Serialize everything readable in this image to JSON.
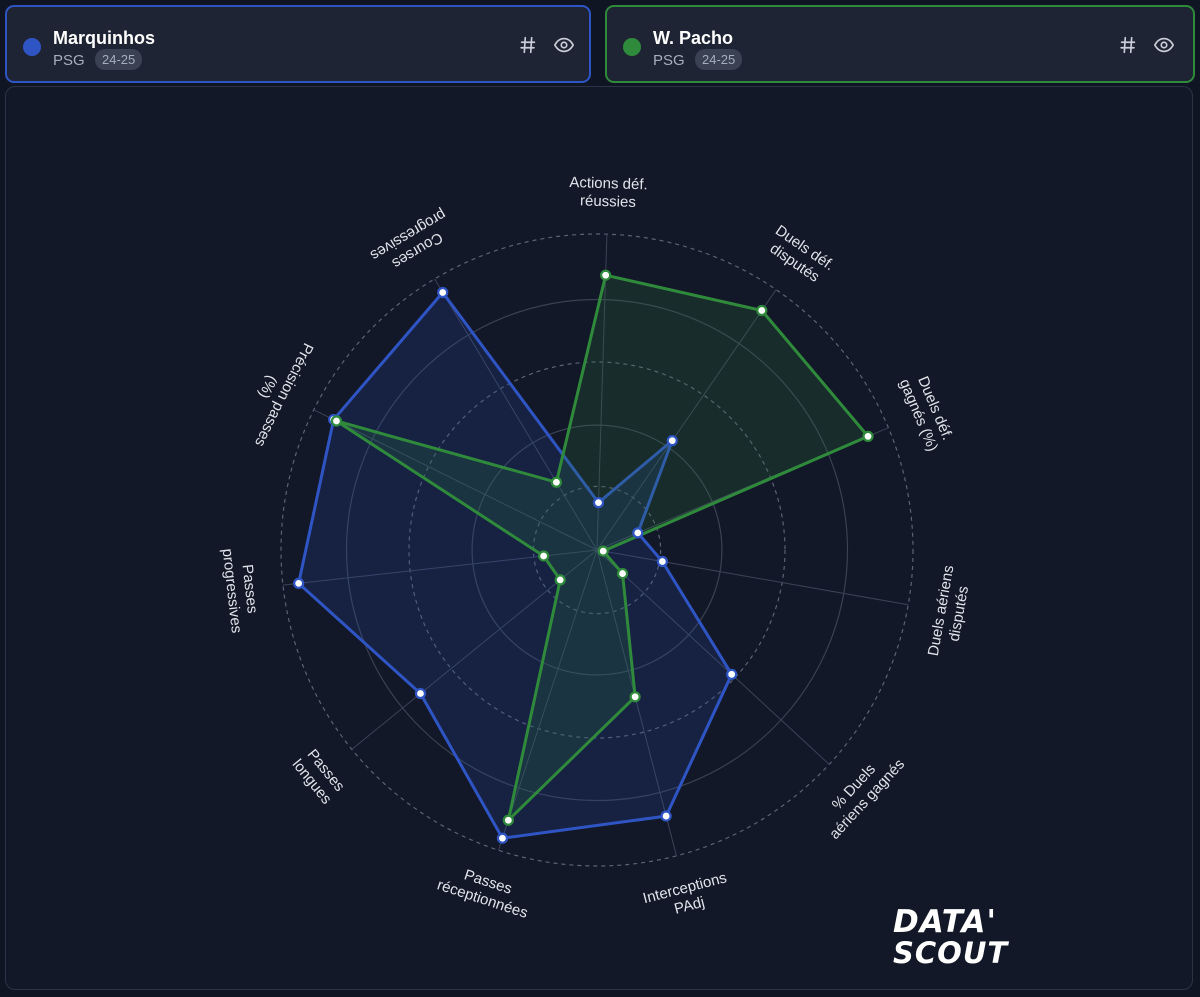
{
  "players": [
    {
      "name": "Marquinhos",
      "club": "PSG",
      "season": "24-25",
      "color": "#2f55c4",
      "border": "#2f55c4"
    },
    {
      "name": "W. Pacho",
      "club": "PSG",
      "season": "24-25",
      "color": "#2f8a3b",
      "border": "#2f8a3b"
    }
  ],
  "icons": {
    "hash": "hash-icon",
    "eye": "eye-icon"
  },
  "logo": {
    "line1": "DATA'",
    "line2": "SCOUT"
  },
  "chart_data": {
    "type": "radar",
    "axes": [
      [
        "Actions déf.",
        "réussies"
      ],
      [
        "Duels déf.",
        "disputés"
      ],
      [
        "Duels déf.",
        "gagnés (%)"
      ],
      [
        "Duels aériens",
        "disputés"
      ],
      [
        "% Duels",
        "aériens gagnés"
      ],
      [
        "Interceptions",
        "PAdj"
      ],
      [
        "Passes",
        "réceptionnées"
      ],
      [
        "Passes",
        "longues"
      ],
      [
        "Passes",
        "progressives"
      ],
      [
        "Précision passes",
        "(%)"
      ],
      [
        "Courses",
        "progressives"
      ]
    ],
    "rlim": [
      0,
      100
    ],
    "rings": 5,
    "grid": true,
    "series": [
      {
        "name": "Marquinhos",
        "color": "#2f55c4",
        "values": [
          15,
          42,
          14,
          21,
          58,
          87,
          96,
          72,
          95,
          93,
          95
        ]
      },
      {
        "name": "W. Pacho",
        "color": "#2f8a3b",
        "values": [
          87,
          92,
          93,
          2,
          11,
          48,
          90,
          15,
          17,
          92,
          25
        ]
      }
    ]
  }
}
